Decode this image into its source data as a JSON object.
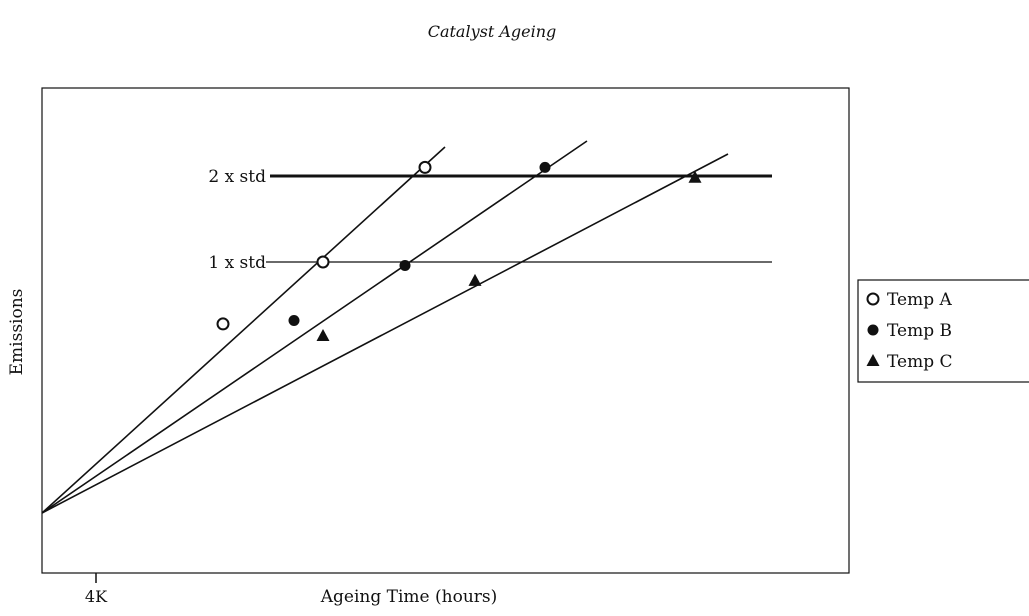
{
  "page": {
    "title": "Catalyst Ageing"
  },
  "chart_data": {
    "type": "line",
    "title": "",
    "xlabel": "Ageing Time (hours)",
    "ylabel": "Emissions",
    "x_ticks": [
      "4K"
    ],
    "grid": false,
    "legend_position": "right",
    "reference_lines": [
      {
        "label": "2 x std",
        "y": 2,
        "style": "thick"
      },
      {
        "label": "1 x std",
        "y": 1,
        "style": "thin"
      }
    ],
    "series": [
      {
        "name": "Temp A",
        "marker": "open-circle",
        "points": [
          {
            "x": 0,
            "y": -1.52
          },
          {
            "x": 1,
            "y": 0.28
          },
          {
            "x": 2,
            "y": 1.0
          },
          {
            "x": 3,
            "y": 2.1
          }
        ]
      },
      {
        "name": "Temp B",
        "marker": "filled-circle",
        "points": [
          {
            "x": 0,
            "y": -1.52
          },
          {
            "x": 1,
            "y": 0.32
          },
          {
            "x": 2,
            "y": 0.96
          },
          {
            "x": 3,
            "y": 2.1
          }
        ]
      },
      {
        "name": "Temp C",
        "marker": "filled-triangle",
        "points": [
          {
            "x": 0,
            "y": -1.52
          },
          {
            "x": 1,
            "y": 0.14
          },
          {
            "x": 2,
            "y": 0.78
          },
          {
            "x": 3,
            "y": 1.98
          }
        ]
      }
    ]
  }
}
